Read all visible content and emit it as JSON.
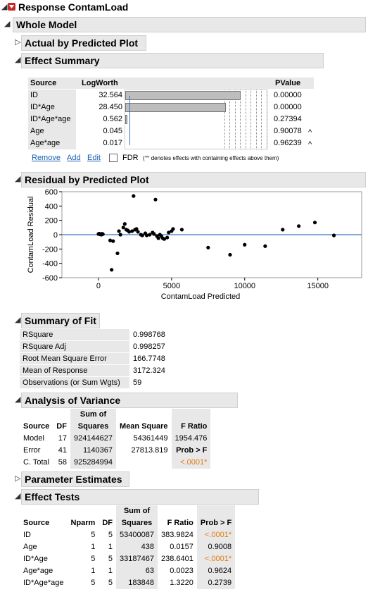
{
  "report": {
    "title": "Response ContamLoad",
    "whole_model": "Whole Model",
    "actual_by_predicted": "Actual by Predicted Plot",
    "effect_summary": "Effect Summary",
    "residual_by_predicted": "Residual by Predicted Plot",
    "summary_of_fit": "Summary of Fit",
    "analysis_of_variance": "Analysis of Variance",
    "parameter_estimates": "Parameter Estimates",
    "effect_tests": "Effect Tests"
  },
  "effect_summary": {
    "headers": {
      "source": "Source",
      "logworth": "LogWorth",
      "pvalue": "PValue"
    },
    "rows": [
      {
        "source": "ID",
        "logworth": "32.564",
        "logworth_num": 32.564,
        "pvalue": "0.00000",
        "flag": ""
      },
      {
        "source": "ID*Age",
        "logworth": "28.450",
        "logworth_num": 28.45,
        "pvalue": "0.00000",
        "flag": ""
      },
      {
        "source": "ID*Age*age",
        "logworth": "0.562",
        "logworth_num": 0.562,
        "pvalue": "0.27394",
        "flag": ""
      },
      {
        "source": "Age",
        "logworth": "0.045",
        "logworth_num": 0.045,
        "pvalue": "0.90078",
        "flag": "^"
      },
      {
        "source": "Age*age",
        "logworth": "0.017",
        "logworth_num": 0.017,
        "pvalue": "0.96239",
        "flag": "^"
      }
    ],
    "bar_max": 40,
    "remove": "Remove",
    "add": "Add",
    "edit": "Edit",
    "fdr": "FDR",
    "note": "('^' denotes effects with containing effects above them)"
  },
  "chart_data": {
    "type": "scatter",
    "xlabel": "ContamLoad Predicted",
    "ylabel": "ContamLoad Residual",
    "xlim": [
      -2500,
      18000
    ],
    "ylim": [
      -600,
      600
    ],
    "xticks": [
      0,
      5000,
      10000,
      15000
    ],
    "yticks": [
      600,
      400,
      200,
      0,
      -200,
      -400,
      -600
    ],
    "reference_line_y": 0,
    "points": [
      [
        0,
        10
      ],
      [
        50,
        15
      ],
      [
        100,
        5
      ],
      [
        150,
        10
      ],
      [
        200,
        0
      ],
      [
        250,
        12
      ],
      [
        300,
        8
      ],
      [
        800,
        -80
      ],
      [
        1000,
        -90
      ],
      [
        900,
        -490
      ],
      [
        1300,
        -260
      ],
      [
        1400,
        50
      ],
      [
        1500,
        0
      ],
      [
        1700,
        100
      ],
      [
        1800,
        150
      ],
      [
        1900,
        70
      ],
      [
        2000,
        60
      ],
      [
        2100,
        40
      ],
      [
        2300,
        50
      ],
      [
        2400,
        540
      ],
      [
        2500,
        70
      ],
      [
        2600,
        80
      ],
      [
        2700,
        40
      ],
      [
        2900,
        0
      ],
      [
        3000,
        -10
      ],
      [
        3200,
        20
      ],
      [
        3300,
        -10
      ],
      [
        3500,
        0
      ],
      [
        3700,
        30
      ],
      [
        3800,
        10
      ],
      [
        3900,
        490
      ],
      [
        4000,
        -20
      ],
      [
        4100,
        -50
      ],
      [
        4200,
        0
      ],
      [
        4300,
        -20
      ],
      [
        4400,
        -50
      ],
      [
        4500,
        -60
      ],
      [
        4700,
        -40
      ],
      [
        4800,
        30
      ],
      [
        5000,
        50
      ],
      [
        5100,
        80
      ],
      [
        5700,
        70
      ],
      [
        7500,
        -180
      ],
      [
        9000,
        -280
      ],
      [
        10000,
        -140
      ],
      [
        11400,
        -160
      ],
      [
        12600,
        70
      ],
      [
        13700,
        120
      ],
      [
        14800,
        170
      ],
      [
        16100,
        -10
      ]
    ],
    "colors": {
      "points": "#000000",
      "reference": "#5b8bd0"
    }
  },
  "summary_of_fit": [
    {
      "label": "RSquare",
      "value": "0.998768"
    },
    {
      "label": "RSquare Adj",
      "value": "0.998257"
    },
    {
      "label": "Root Mean Square Error",
      "value": "166.7748"
    },
    {
      "label": "Mean of Response",
      "value": "3172.324"
    },
    {
      "label": "Observations (or Sum Wgts)",
      "value": "59"
    }
  ],
  "anova": {
    "headers": {
      "source": "Source",
      "df": "DF",
      "ss": "Sum of Squares",
      "ms": "Mean Square",
      "f": "F Ratio"
    },
    "rows": [
      {
        "source": "Model",
        "df": "17",
        "ss": "924144627",
        "ms": "54361449",
        "f": "1954.476"
      },
      {
        "source": "Error",
        "df": "41",
        "ss": "1140367",
        "ms": "27813.819",
        "f": "Prob > F"
      },
      {
        "source": "C. Total",
        "df": "58",
        "ss": "925284994",
        "ms": "",
        "f": "<.0001*"
      }
    ]
  },
  "effect_tests": {
    "headers": {
      "source": "Source",
      "nparm": "Nparm",
      "df": "DF",
      "ss": "Sum of Squares",
      "f": "F Ratio",
      "p": "Prob > F"
    },
    "rows": [
      {
        "source": "ID",
        "nparm": "5",
        "df": "5",
        "ss": "53400087",
        "f": "383.9824",
        "p": "<.0001*",
        "sig": true
      },
      {
        "source": "Age",
        "nparm": "1",
        "df": "1",
        "ss": "438",
        "f": "0.0157",
        "p": "0.9008",
        "sig": false
      },
      {
        "source": "ID*Age",
        "nparm": "5",
        "df": "5",
        "ss": "33187467",
        "f": "238.6401",
        "p": "<.0001*",
        "sig": true
      },
      {
        "source": "Age*age",
        "nparm": "1",
        "df": "1",
        "ss": "63",
        "f": "0.0023",
        "p": "0.9624",
        "sig": false
      },
      {
        "source": "ID*Age*age",
        "nparm": "5",
        "df": "5",
        "ss": "183848",
        "f": "1.3220",
        "p": "0.2739",
        "sig": false
      }
    ]
  },
  "colors": {
    "accent_orange": "#e07a10",
    "link_blue": "#1a5fb4",
    "header_grey": "#e8e8e8"
  }
}
